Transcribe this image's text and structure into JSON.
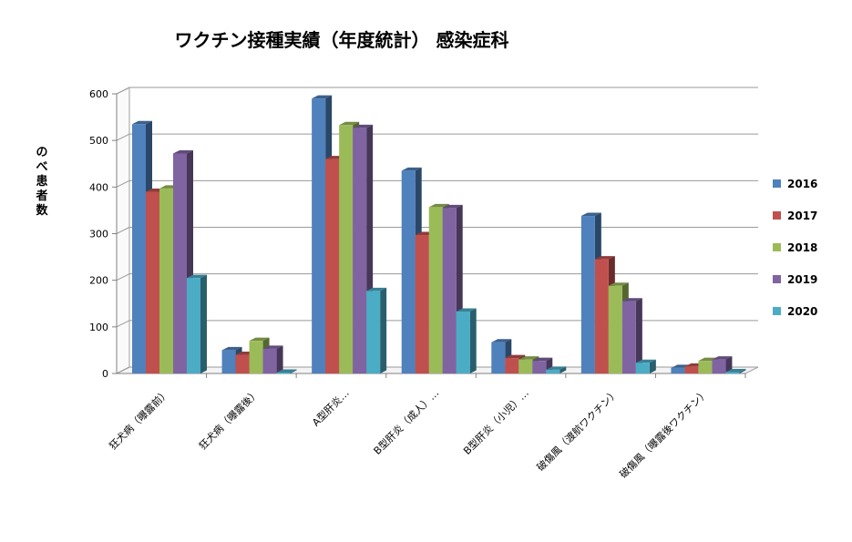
{
  "chart_data": {
    "type": "bar",
    "title": "ワクチン接種実績（年度統計） 感染症科",
    "xlabel": "",
    "ylabel": "のべ患者数",
    "ylim": [
      0,
      600
    ],
    "yticks": [
      0,
      100,
      200,
      300,
      400,
      500,
      600
    ],
    "grid": true,
    "legend_position": "right",
    "style": "3d-clustered",
    "categories": [
      "狂犬病（曝露前）",
      "狂犬病（曝露後）",
      "A型肝炎…",
      "B型肝炎（成人）…",
      "B型肝炎（小児）…",
      "破傷風（渡航ワクチン）",
      "破傷風（曝露後ワクチン）"
    ],
    "series": [
      {
        "name": "2016",
        "color": "#4f81bd",
        "values": [
          535,
          50,
          590,
          435,
          67,
          338,
          12
        ]
      },
      {
        "name": "2017",
        "color": "#c0504d",
        "values": [
          390,
          40,
          460,
          297,
          33,
          245,
          15
        ]
      },
      {
        "name": "2018",
        "color": "#9bbb59",
        "values": [
          397,
          70,
          533,
          357,
          30,
          188,
          27
        ]
      },
      {
        "name": "2019",
        "color": "#8064a2",
        "values": [
          472,
          53,
          527,
          355,
          27,
          155,
          30
        ]
      },
      {
        "name": "2020",
        "color": "#4bacc6",
        "values": [
          205,
          2,
          177,
          133,
          8,
          23,
          3
        ]
      }
    ]
  }
}
